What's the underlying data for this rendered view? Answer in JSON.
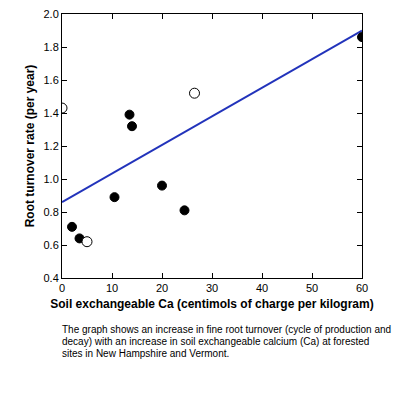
{
  "chart_data": {
    "type": "scatter",
    "x_label": "Soil exchangeable Ca (centimols of charge per kilogram)",
    "y_label": "Root turnover rate (per year)",
    "annotations": [
      "The graph shows an increase in fine root turnover (cycle of production and decay) with an increase in soil exchangeable calcium (Ca) at forested sites in New Hampshire and Vermont."
    ],
    "series": [
      {
        "type": "line",
        "color": "#2233bb",
        "line_style": "solid",
        "x": [
          0,
          60
        ],
        "values": [
          0.86,
          1.9
        ]
      },
      {
        "type": "scatter",
        "marker": "filled",
        "color": "#000000",
        "x": [
          2,
          3.5,
          10.5,
          13.5,
          14,
          20,
          24.5,
          60
        ],
        "values": [
          0.71,
          0.64,
          0.89,
          1.39,
          1.32,
          0.96,
          0.81,
          1.86
        ]
      },
      {
        "type": "scatter",
        "marker": "open",
        "color": "#000000",
        "x": [
          0,
          5,
          26.5
        ],
        "values": [
          1.43,
          0.62,
          1.52
        ]
      }
    ],
    "xlim": [
      0,
      60
    ],
    "xticks": [
      0,
      10,
      20,
      30,
      40,
      50,
      60
    ],
    "ylim": [
      0.4,
      2.0
    ],
    "yticks": [
      0.4,
      0.6,
      0.8,
      {
        "value": 1.0,
        "label": "1.0"
      },
      1.2,
      1.4,
      1.6,
      1.8,
      {
        "value": 2.0,
        "label": "2.0"
      }
    ],
    "grid": false
  }
}
